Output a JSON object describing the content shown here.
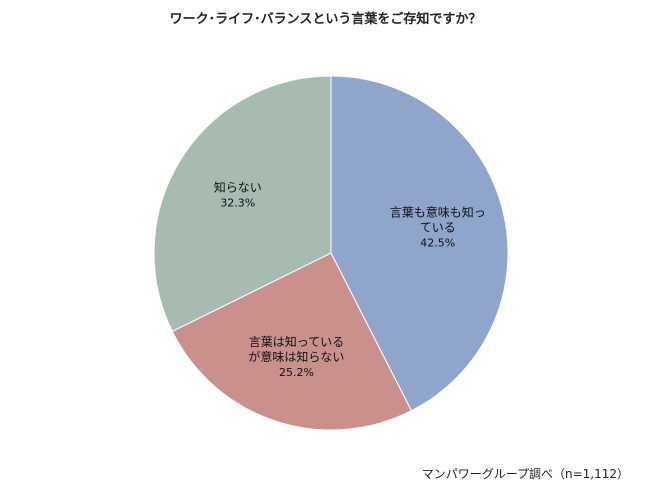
{
  "chart_data": {
    "type": "pie",
    "title": "ワーク･ライフ･バランスという言葉をご存知ですか？",
    "slices": [
      {
        "label_lines": [
          "言葉も意味も知っ",
          "ている"
        ],
        "value": 42.5,
        "value_label": "42.5%",
        "color": "#8fa5cb"
      },
      {
        "label_lines": [
          "言葉は知っている",
          "が意味は知らない"
        ],
        "value": 25.2,
        "value_label": "25.2%",
        "color": "#c9908c"
      },
      {
        "label_lines": [
          "知らない"
        ],
        "value": 32.3,
        "value_label": "32.3%",
        "color": "#a8bbb1"
      }
    ],
    "start": "12 o'clock, clockwise",
    "source": "マンパワーグループ調べ（n=1,112）"
  }
}
